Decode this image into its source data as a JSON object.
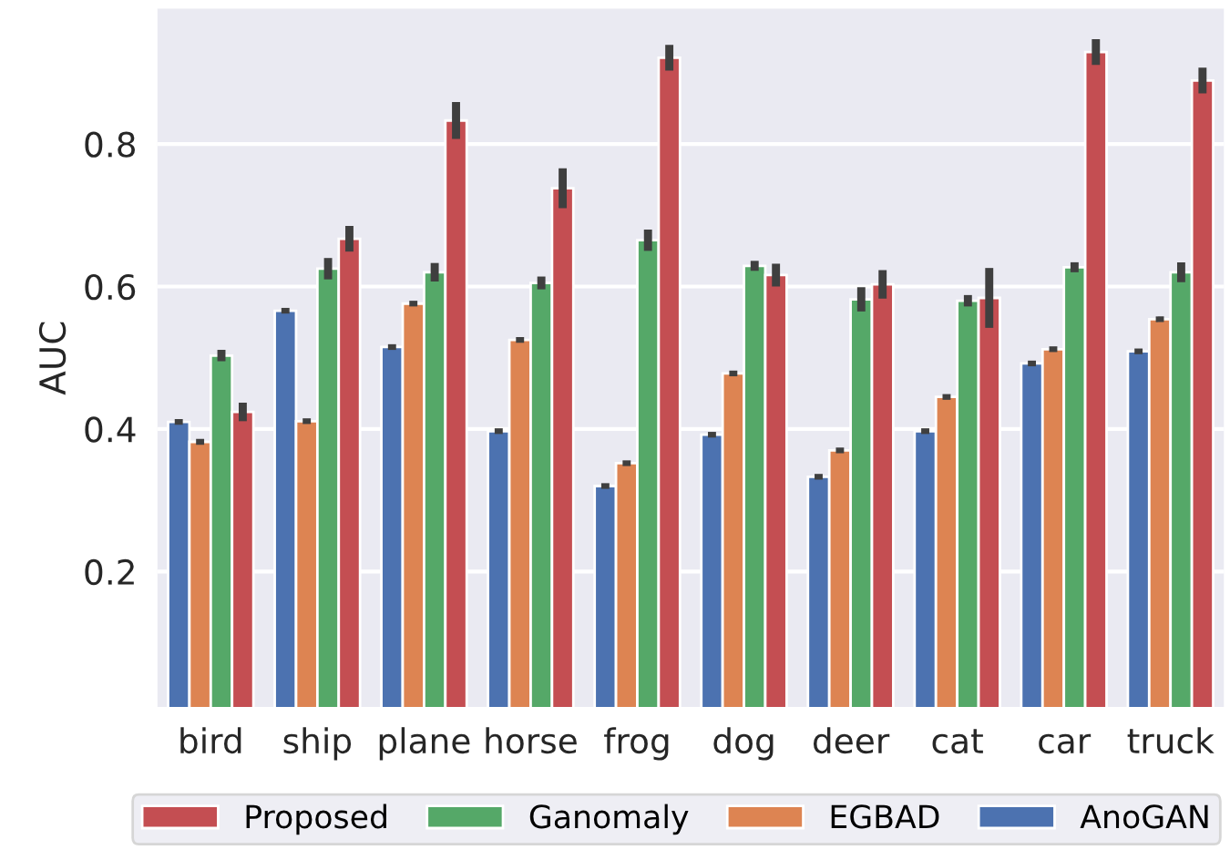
{
  "chart_data": {
    "type": "bar",
    "ylabel": "AUC",
    "categories": [
      "bird",
      "ship",
      "plane",
      "horse",
      "frog",
      "dog",
      "deer",
      "cat",
      "car",
      "truck"
    ],
    "series": [
      {
        "name": "AnoGAN",
        "color": "#4c72b0",
        "values": [
          0.41,
          0.566,
          0.515,
          0.397,
          0.32,
          0.392,
          0.333,
          0.397,
          0.492,
          0.509
        ],
        "errors": [
          0.004,
          0.004,
          0.004,
          0.004,
          0.004,
          0.004,
          0.004,
          0.004,
          0.004,
          0.004
        ]
      },
      {
        "name": "EGBAD",
        "color": "#dd8452",
        "values": [
          0.382,
          0.411,
          0.576,
          0.525,
          0.352,
          0.478,
          0.37,
          0.445,
          0.512,
          0.554
        ],
        "errors": [
          0.004,
          0.004,
          0.004,
          0.004,
          0.004,
          0.004,
          0.004,
          0.004,
          0.004,
          0.004
        ]
      },
      {
        "name": "Ganomaly",
        "color": "#55a868",
        "values": [
          0.503,
          0.625,
          0.62,
          0.605,
          0.665,
          0.629,
          0.582,
          0.58,
          0.627,
          0.62
        ],
        "errors": [
          0.008,
          0.015,
          0.013,
          0.009,
          0.015,
          0.007,
          0.017,
          0.008,
          0.007,
          0.014
        ]
      },
      {
        "name": "Proposed",
        "color": "#c44e52",
        "values": [
          0.424,
          0.667,
          0.833,
          0.738,
          0.921,
          0.616,
          0.603,
          0.584,
          0.929,
          0.889
        ],
        "errors": [
          0.013,
          0.018,
          0.026,
          0.028,
          0.018,
          0.016,
          0.02,
          0.042,
          0.018,
          0.018
        ]
      }
    ],
    "ylim": [
      0.01,
      0.99
    ],
    "yticks": [
      0.2,
      0.4,
      0.6,
      0.8
    ],
    "grid": "y",
    "legend": "bottom"
  }
}
